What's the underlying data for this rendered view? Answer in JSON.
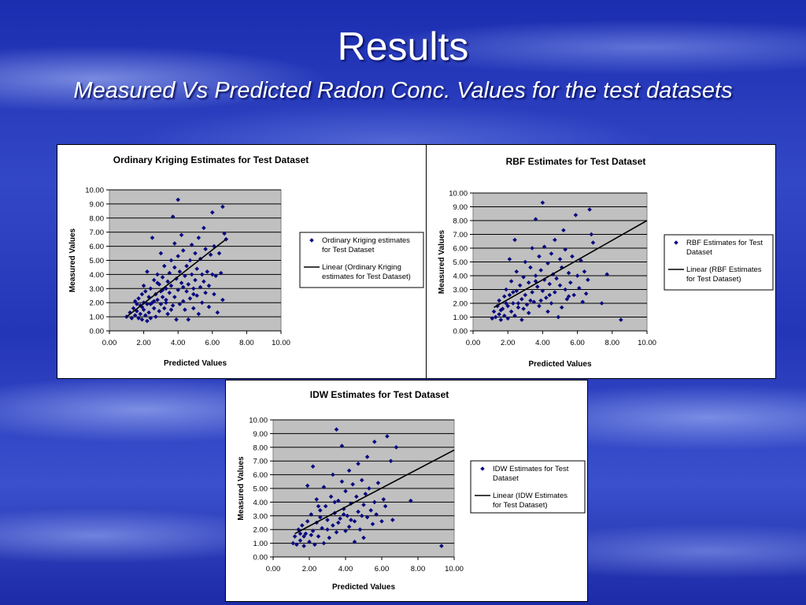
{
  "slide": {
    "title": "Results",
    "subtitle": "Measured Vs Predicted Radon Conc. Values for the test datasets"
  },
  "colors": {
    "point": "#0a0a80",
    "trendline": "#000000",
    "plot_area": "#c0c0c0"
  },
  "chart_data": [
    {
      "type": "scatter",
      "title": "Ordinary Kriging Estimates for Test Dataset",
      "xlabel": "Predicted Values",
      "ylabel": "Measured Values",
      "xlim": [
        0,
        10
      ],
      "ylim": [
        0,
        10
      ],
      "xticks": [
        "0.00",
        "2.00",
        "4.00",
        "6.00",
        "8.00",
        "10.00"
      ],
      "yticks": [
        "0.00",
        "1.00",
        "2.00",
        "3.00",
        "4.00",
        "5.00",
        "6.00",
        "7.00",
        "8.00",
        "9.00",
        "10.00"
      ],
      "grid": "horizontal",
      "legend": [
        "Ordinary Kriging estimates for Test Dataset",
        "Linear (Ordinary Kriging estimates for Test Dataset)"
      ],
      "trendline": {
        "x": [
          1.0,
          6.8
        ],
        "y": [
          1.0,
          6.5
        ]
      },
      "points": [
        [
          1.0,
          1.0
        ],
        [
          1.2,
          1.3
        ],
        [
          1.3,
          0.9
        ],
        [
          1.4,
          1.6
        ],
        [
          1.5,
          1.1
        ],
        [
          1.5,
          2.1
        ],
        [
          1.6,
          1.4
        ],
        [
          1.7,
          0.9
        ],
        [
          1.7,
          2.3
        ],
        [
          1.8,
          1.2
        ],
        [
          1.8,
          1.8
        ],
        [
          1.9,
          2.6
        ],
        [
          1.9,
          0.8
        ],
        [
          2.0,
          1.5
        ],
        [
          2.0,
          3.2
        ],
        [
          2.0,
          2.0
        ],
        [
          2.1,
          1.1
        ],
        [
          2.1,
          2.8
        ],
        [
          2.2,
          0.7
        ],
        [
          2.2,
          1.9
        ],
        [
          2.2,
          4.2
        ],
        [
          2.3,
          2.4
        ],
        [
          2.3,
          1.3
        ],
        [
          2.4,
          3.0
        ],
        [
          2.4,
          0.9
        ],
        [
          2.5,
          2.0
        ],
        [
          2.5,
          6.6
        ],
        [
          2.6,
          1.6
        ],
        [
          2.6,
          3.6
        ],
        [
          2.7,
          2.6
        ],
        [
          2.7,
          1.0
        ],
        [
          2.8,
          4.0
        ],
        [
          2.8,
          2.2
        ],
        [
          2.9,
          3.3
        ],
        [
          2.9,
          1.4
        ],
        [
          3.0,
          2.8
        ],
        [
          3.0,
          5.5
        ],
        [
          3.0,
          1.9
        ],
        [
          3.1,
          3.8
        ],
        [
          3.1,
          2.4
        ],
        [
          3.2,
          1.6
        ],
        [
          3.2,
          4.6
        ],
        [
          3.3,
          3.0
        ],
        [
          3.3,
          2.0
        ],
        [
          3.4,
          3.5
        ],
        [
          3.4,
          1.2
        ],
        [
          3.5,
          4.1
        ],
        [
          3.5,
          2.7
        ],
        [
          3.6,
          5.0
        ],
        [
          3.6,
          3.2
        ],
        [
          3.7,
          1.8
        ],
        [
          3.7,
          8.1
        ],
        [
          3.8,
          2.4
        ],
        [
          3.8,
          6.2
        ],
        [
          3.8,
          4.5
        ],
        [
          3.9,
          3.7
        ],
        [
          3.9,
          0.8
        ],
        [
          4.0,
          9.3
        ],
        [
          4.0,
          2.9
        ],
        [
          4.0,
          5.3
        ],
        [
          4.1,
          1.9
        ],
        [
          4.1,
          4.2
        ],
        [
          4.2,
          3.4
        ],
        [
          4.2,
          6.8
        ],
        [
          4.3,
          2.1
        ],
        [
          4.3,
          5.7
        ],
        [
          4.4,
          3.9
        ],
        [
          4.4,
          1.5
        ],
        [
          4.5,
          4.6
        ],
        [
          4.5,
          2.8
        ],
        [
          4.6,
          3.3
        ],
        [
          4.6,
          0.8
        ],
        [
          4.7,
          5.0
        ],
        [
          4.7,
          2.3
        ],
        [
          4.8,
          4.0
        ],
        [
          4.8,
          6.1
        ],
        [
          4.9,
          3.0
        ],
        [
          4.9,
          1.6
        ],
        [
          5.0,
          5.5
        ],
        [
          5.0,
          3.6
        ],
        [
          5.1,
          2.5
        ],
        [
          5.1,
          4.4
        ],
        [
          5.2,
          1.2
        ],
        [
          5.2,
          6.6
        ],
        [
          5.3,
          3.1
        ],
        [
          5.3,
          5.1
        ],
        [
          5.4,
          2.0
        ],
        [
          5.4,
          4.0
        ],
        [
          5.5,
          3.5
        ],
        [
          5.5,
          7.3
        ],
        [
          5.6,
          2.7
        ],
        [
          5.6,
          5.8
        ],
        [
          5.7,
          4.2
        ],
        [
          5.8,
          3.2
        ],
        [
          5.8,
          1.7
        ],
        [
          5.9,
          5.4
        ],
        [
          6.0,
          4.0
        ],
        [
          6.0,
          8.4
        ],
        [
          6.1,
          2.6
        ],
        [
          6.1,
          6.0
        ],
        [
          6.2,
          3.9
        ],
        [
          6.3,
          1.3
        ],
        [
          6.4,
          5.5
        ],
        [
          6.5,
          4.1
        ],
        [
          6.6,
          8.8
        ],
        [
          6.6,
          2.2
        ],
        [
          6.7,
          6.9
        ],
        [
          6.8,
          6.5
        ],
        [
          3.3,
          2.2
        ],
        [
          2.6,
          2.1
        ],
        [
          1.9,
          1.7
        ],
        [
          3.6,
          1.5
        ],
        [
          4.3,
          3.1
        ],
        [
          2.4,
          1.9
        ],
        [
          3.1,
          2.9
        ],
        [
          4.9,
          2.6
        ],
        [
          1.6,
          1.9
        ],
        [
          2.8,
          3.4
        ]
      ]
    },
    {
      "type": "scatter",
      "title": "RBF Estimates for Test Dataset",
      "xlabel": "Predicted Values",
      "ylabel": "Measured Values",
      "xlim": [
        0,
        10
      ],
      "ylim": [
        0,
        10
      ],
      "xticks": [
        "0.00",
        "2.00",
        "4.00",
        "6.00",
        "8.00",
        "10.00"
      ],
      "yticks": [
        "0.00",
        "1.00",
        "2.00",
        "3.00",
        "4.00",
        "5.00",
        "6.00",
        "7.00",
        "8.00",
        "9.00",
        "10.00"
      ],
      "grid": "horizontal",
      "legend": [
        "RBF Estimates for Test Dataset",
        "Linear (RBF Estimates for Test Dataset)"
      ],
      "trendline": {
        "x": [
          1.2,
          10.0
        ],
        "y": [
          1.7,
          8.0
        ]
      },
      "points": [
        [
          1.1,
          0.9
        ],
        [
          1.2,
          1.4
        ],
        [
          1.3,
          1.0
        ],
        [
          1.4,
          1.8
        ],
        [
          1.5,
          1.2
        ],
        [
          1.5,
          2.2
        ],
        [
          1.6,
          0.8
        ],
        [
          1.7,
          1.6
        ],
        [
          1.8,
          2.5
        ],
        [
          1.8,
          1.1
        ],
        [
          1.9,
          3.0
        ],
        [
          2.0,
          1.8
        ],
        [
          2.0,
          0.9
        ],
        [
          2.1,
          2.6
        ],
        [
          2.1,
          5.2
        ],
        [
          2.2,
          1.4
        ],
        [
          2.2,
          3.6
        ],
        [
          2.3,
          2.0
        ],
        [
          2.4,
          6.6
        ],
        [
          2.4,
          1.1
        ],
        [
          2.5,
          2.9
        ],
        [
          2.5,
          4.3
        ],
        [
          2.6,
          1.7
        ],
        [
          2.7,
          3.3
        ],
        [
          2.8,
          2.3
        ],
        [
          2.8,
          0.8
        ],
        [
          2.9,
          3.9
        ],
        [
          3.0,
          2.6
        ],
        [
          3.0,
          5.0
        ],
        [
          3.1,
          1.9
        ],
        [
          3.2,
          3.5
        ],
        [
          3.2,
          1.3
        ],
        [
          3.3,
          4.6
        ],
        [
          3.4,
          2.8
        ],
        [
          3.4,
          6.0
        ],
        [
          3.5,
          2.1
        ],
        [
          3.6,
          8.1
        ],
        [
          3.6,
          4.0
        ],
        [
          3.7,
          3.2
        ],
        [
          3.8,
          5.4
        ],
        [
          3.8,
          1.8
        ],
        [
          3.9,
          4.4
        ],
        [
          4.0,
          9.3
        ],
        [
          4.0,
          2.9
        ],
        [
          4.1,
          3.7
        ],
        [
          4.1,
          6.1
        ],
        [
          4.2,
          2.4
        ],
        [
          4.3,
          4.9
        ],
        [
          4.3,
          1.4
        ],
        [
          4.4,
          3.4
        ],
        [
          4.5,
          5.6
        ],
        [
          4.5,
          2.0
        ],
        [
          4.6,
          4.1
        ],
        [
          4.7,
          6.6
        ],
        [
          4.7,
          2.8
        ],
        [
          4.8,
          3.8
        ],
        [
          4.9,
          1.0
        ],
        [
          5.0,
          5.2
        ],
        [
          5.0,
          3.3
        ],
        [
          5.1,
          4.6
        ],
        [
          5.1,
          1.7
        ],
        [
          5.2,
          7.3
        ],
        [
          5.3,
          3.0
        ],
        [
          5.3,
          5.9
        ],
        [
          5.4,
          2.3
        ],
        [
          5.5,
          4.2
        ],
        [
          5.6,
          3.5
        ],
        [
          5.7,
          5.4
        ],
        [
          5.8,
          2.6
        ],
        [
          5.9,
          8.4
        ],
        [
          6.0,
          4.0
        ],
        [
          6.1,
          3.1
        ],
        [
          6.2,
          5.1
        ],
        [
          6.3,
          2.1
        ],
        [
          6.4,
          4.3
        ],
        [
          6.5,
          2.7
        ],
        [
          6.6,
          3.7
        ],
        [
          6.7,
          8.8
        ],
        [
          6.8,
          7.0
        ],
        [
          6.9,
          6.4
        ],
        [
          7.4,
          2.0
        ],
        [
          7.7,
          4.1
        ],
        [
          8.5,
          0.8
        ],
        [
          3.3,
          2.2
        ],
        [
          2.6,
          2.0
        ],
        [
          1.9,
          2.0
        ],
        [
          2.3,
          2.8
        ],
        [
          3.9,
          2.2
        ],
        [
          4.4,
          2.6
        ],
        [
          2.9,
          1.6
        ],
        [
          3.6,
          3.6
        ],
        [
          5.5,
          2.5
        ],
        [
          1.6,
          1.5
        ]
      ]
    },
    {
      "type": "scatter",
      "title": "IDW Estimates for Test Dataset",
      "xlabel": "Predicted Values",
      "ylabel": "Measured Values",
      "xlim": [
        0,
        10
      ],
      "ylim": [
        0,
        10
      ],
      "xticks": [
        "0.00",
        "2.00",
        "4.00",
        "6.00",
        "8.00",
        "10.00"
      ],
      "yticks": [
        "0.00",
        "1.00",
        "2.00",
        "3.00",
        "4.00",
        "5.00",
        "6.00",
        "7.00",
        "8.00",
        "9.00",
        "10.00"
      ],
      "grid": "horizontal",
      "legend": [
        "IDW Estimates for Test Dataset",
        "Linear (IDW Estimates for Test Dataset)"
      ],
      "trendline": {
        "x": [
          1.2,
          10.0
        ],
        "y": [
          1.7,
          7.8
        ]
      },
      "points": [
        [
          1.1,
          1.0
        ],
        [
          1.2,
          1.5
        ],
        [
          1.3,
          0.9
        ],
        [
          1.4,
          2.0
        ],
        [
          1.5,
          1.2
        ],
        [
          1.6,
          2.3
        ],
        [
          1.7,
          0.8
        ],
        [
          1.8,
          1.7
        ],
        [
          1.9,
          2.6
        ],
        [
          1.9,
          5.2
        ],
        [
          2.0,
          1.1
        ],
        [
          2.1,
          3.1
        ],
        [
          2.2,
          1.9
        ],
        [
          2.2,
          6.6
        ],
        [
          2.3,
          0.9
        ],
        [
          2.4,
          2.5
        ],
        [
          2.4,
          4.2
        ],
        [
          2.5,
          1.5
        ],
        [
          2.6,
          3.4
        ],
        [
          2.7,
          2.1
        ],
        [
          2.8,
          5.1
        ],
        [
          2.8,
          1.0
        ],
        [
          2.9,
          3.7
        ],
        [
          3.0,
          2.7
        ],
        [
          3.1,
          1.4
        ],
        [
          3.2,
          4.4
        ],
        [
          3.3,
          2.3
        ],
        [
          3.3,
          6.0
        ],
        [
          3.4,
          3.2
        ],
        [
          3.5,
          9.3
        ],
        [
          3.5,
          1.8
        ],
        [
          3.6,
          4.1
        ],
        [
          3.7,
          2.8
        ],
        [
          3.8,
          8.1
        ],
        [
          3.8,
          5.5
        ],
        [
          3.9,
          3.5
        ],
        [
          4.0,
          1.9
        ],
        [
          4.0,
          4.8
        ],
        [
          4.1,
          3.0
        ],
        [
          4.2,
          6.3
        ],
        [
          4.2,
          2.2
        ],
        [
          4.3,
          3.9
        ],
        [
          4.4,
          5.3
        ],
        [
          4.5,
          2.6
        ],
        [
          4.5,
          1.1
        ],
        [
          4.6,
          4.4
        ],
        [
          4.7,
          6.8
        ],
        [
          4.7,
          3.3
        ],
        [
          4.8,
          2.0
        ],
        [
          4.9,
          5.6
        ],
        [
          5.0,
          3.8
        ],
        [
          5.0,
          1.4
        ],
        [
          5.1,
          4.6
        ],
        [
          5.2,
          7.3
        ],
        [
          5.2,
          2.9
        ],
        [
          5.3,
          5.0
        ],
        [
          5.4,
          3.4
        ],
        [
          5.5,
          2.4
        ],
        [
          5.6,
          8.4
        ],
        [
          5.6,
          4.0
        ],
        [
          5.7,
          3.1
        ],
        [
          5.8,
          5.4
        ],
        [
          6.0,
          2.6
        ],
        [
          6.1,
          4.2
        ],
        [
          6.2,
          3.7
        ],
        [
          6.3,
          8.8
        ],
        [
          6.5,
          7.0
        ],
        [
          6.6,
          2.7
        ],
        [
          6.8,
          8.0
        ],
        [
          7.6,
          4.1
        ],
        [
          9.3,
          0.8
        ],
        [
          3.0,
          2.0
        ],
        [
          2.6,
          2.9
        ],
        [
          3.6,
          2.5
        ],
        [
          4.3,
          2.7
        ],
        [
          1.7,
          1.5
        ],
        [
          2.1,
          1.6
        ],
        [
          3.9,
          3.1
        ],
        [
          4.9,
          3.0
        ],
        [
          2.5,
          3.7
        ],
        [
          3.4,
          4.0
        ],
        [
          1.5,
          1.7
        ]
      ]
    }
  ]
}
